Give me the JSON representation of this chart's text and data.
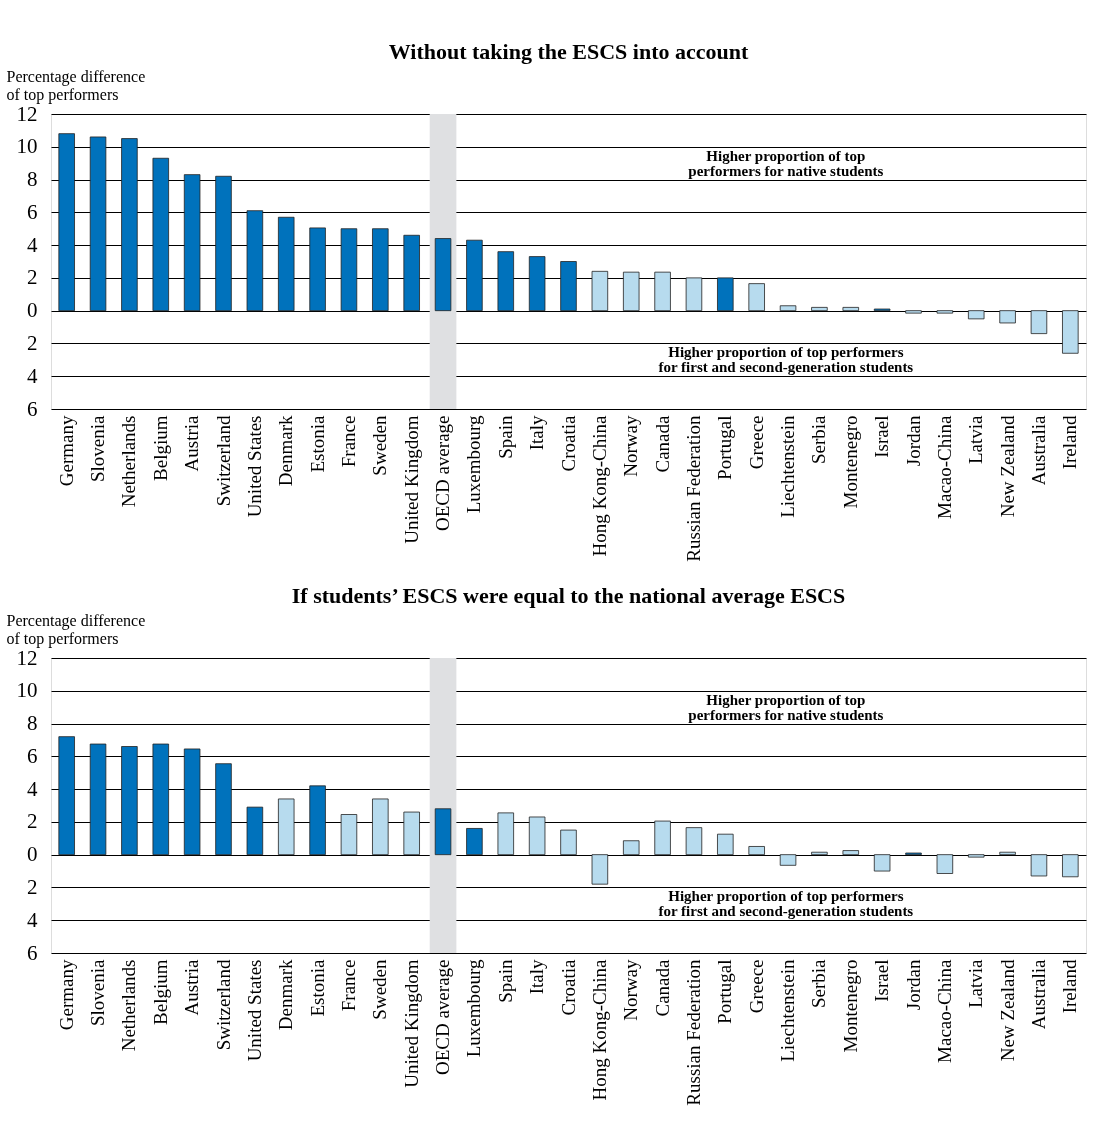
{
  "chart_data": [
    {
      "type": "bar",
      "title": "Without taking the ESCS into account",
      "ylabel": "Percentage difference\nof top performers",
      "categories": [
        "Germany",
        "Slovenia",
        "Netherlands",
        "Belgium",
        "Austria",
        "Switzerland",
        "United States",
        "Denmark",
        "Estonia",
        "France",
        "Sweden",
        "United Kingdom",
        "OECD average",
        "Luxembourg",
        "Spain",
        "Italy",
        "Croatia",
        "Hong Kong-China",
        "Norway",
        "Canada",
        "Russian Federation",
        "Portugal",
        "Greece",
        "Liechtenstein",
        "Serbia",
        "Montenegro",
        "Israel",
        "Jordan",
        "Macao-China",
        "Latvia",
        "New Zealand",
        "Australia",
        "Ireland"
      ],
      "values": [
        10.8,
        10.6,
        10.5,
        9.3,
        8.3,
        8.2,
        6.1,
        5.7,
        5.05,
        5.0,
        5.0,
        4.6,
        4.4,
        4.3,
        3.6,
        3.3,
        3.0,
        2.4,
        2.35,
        2.35,
        2.0,
        2.0,
        1.65,
        0.3,
        0.2,
        0.2,
        0.1,
        -0.15,
        -0.15,
        -0.5,
        -0.75,
        -1.4,
        -2.6
      ],
      "colors": [
        "#0072bc",
        "#0072bc",
        "#0072bc",
        "#0072bc",
        "#0072bc",
        "#0072bc",
        "#0072bc",
        "#0072bc",
        "#0072bc",
        "#0072bc",
        "#0072bc",
        "#0072bc",
        "#0072bc",
        "#0072bc",
        "#0072bc",
        "#0072bc",
        "#0072bc",
        "#b7dbee",
        "#b7dbee",
        "#b7dbee",
        "#b7dbee",
        "#0072bc",
        "#b7dbee",
        "#b7dbee",
        "#b7dbee",
        "#b7dbee",
        "#0072bc",
        "#b7dbee",
        "#b7dbee",
        "#b7dbee",
        "#b7dbee",
        "#b7dbee",
        "#b7dbee"
      ],
      "ylim": [
        -6,
        12
      ],
      "yticks": [
        {
          "value": -6,
          "label": "6"
        },
        {
          "value": -4,
          "label": "4"
        },
        {
          "value": -2,
          "label": "2"
        },
        0,
        2,
        4,
        6,
        8,
        10,
        12
      ],
      "grid": "y",
      "bands": [
        {
          "axis": "x",
          "from": "OECD average",
          "to": "OECD average",
          "color": "#dfe0e2"
        }
      ],
      "annotations": [
        "Higher proportion of top\nperformers for native students",
        "Higher proportion of top performers\nfor first and second-generation students"
      ]
    },
    {
      "type": "bar",
      "title": "If students’ ESCS were equal to the national average ESCS",
      "ylabel": "Percentage difference\nof top performers",
      "categories": [
        "Germany",
        "Slovenia",
        "Netherlands",
        "Belgium",
        "Austria",
        "Switzerland",
        "United States",
        "Denmark",
        "Estonia",
        "France",
        "Sweden",
        "United Kingdom",
        "OECD average",
        "Luxembourg",
        "Spain",
        "Italy",
        "Croatia",
        "Hong Kong-China",
        "Norway",
        "Canada",
        "Russian Federation",
        "Portugal",
        "Greece",
        "Liechtenstein",
        "Serbia",
        "Montenegro",
        "Israel",
        "Jordan",
        "Macao-China",
        "Latvia",
        "New Zealand",
        "Australia",
        "Ireland"
      ],
      "values": [
        7.2,
        6.75,
        6.6,
        6.75,
        6.45,
        5.55,
        2.9,
        3.4,
        4.2,
        2.45,
        3.4,
        2.6,
        2.8,
        1.6,
        2.55,
        2.3,
        1.5,
        -1.8,
        0.85,
        2.05,
        1.65,
        1.25,
        0.5,
        -0.65,
        0.15,
        0.25,
        -1.0,
        0.1,
        -1.15,
        -0.15,
        0.15,
        -1.3,
        -1.35
      ],
      "colors": [
        "#0072bc",
        "#0072bc",
        "#0072bc",
        "#0072bc",
        "#0072bc",
        "#0072bc",
        "#0072bc",
        "#b7dbee",
        "#0072bc",
        "#b7dbee",
        "#b7dbee",
        "#b7dbee",
        "#0072bc",
        "#0072bc",
        "#b7dbee",
        "#b7dbee",
        "#b7dbee",
        "#b7dbee",
        "#b7dbee",
        "#b7dbee",
        "#b7dbee",
        "#b7dbee",
        "#b7dbee",
        "#b7dbee",
        "#b7dbee",
        "#b7dbee",
        "#b7dbee",
        "#0072bc",
        "#b7dbee",
        "#b7dbee",
        "#b7dbee",
        "#b7dbee",
        "#b7dbee"
      ],
      "ylim": [
        -6,
        12
      ],
      "yticks": [
        {
          "value": -6,
          "label": "6"
        },
        {
          "value": -4,
          "label": "4"
        },
        {
          "value": -2,
          "label": "2"
        },
        0,
        2,
        4,
        6,
        8,
        10,
        12
      ],
      "grid": "y",
      "bands": [
        {
          "axis": "x",
          "from": "OECD average",
          "to": "OECD average",
          "color": "#dfe0e2"
        }
      ],
      "annotations": [
        "Higher proportion of top\nperformers for native students",
        "Higher proportion of top performers\nfor first and second-generation students"
      ]
    }
  ]
}
